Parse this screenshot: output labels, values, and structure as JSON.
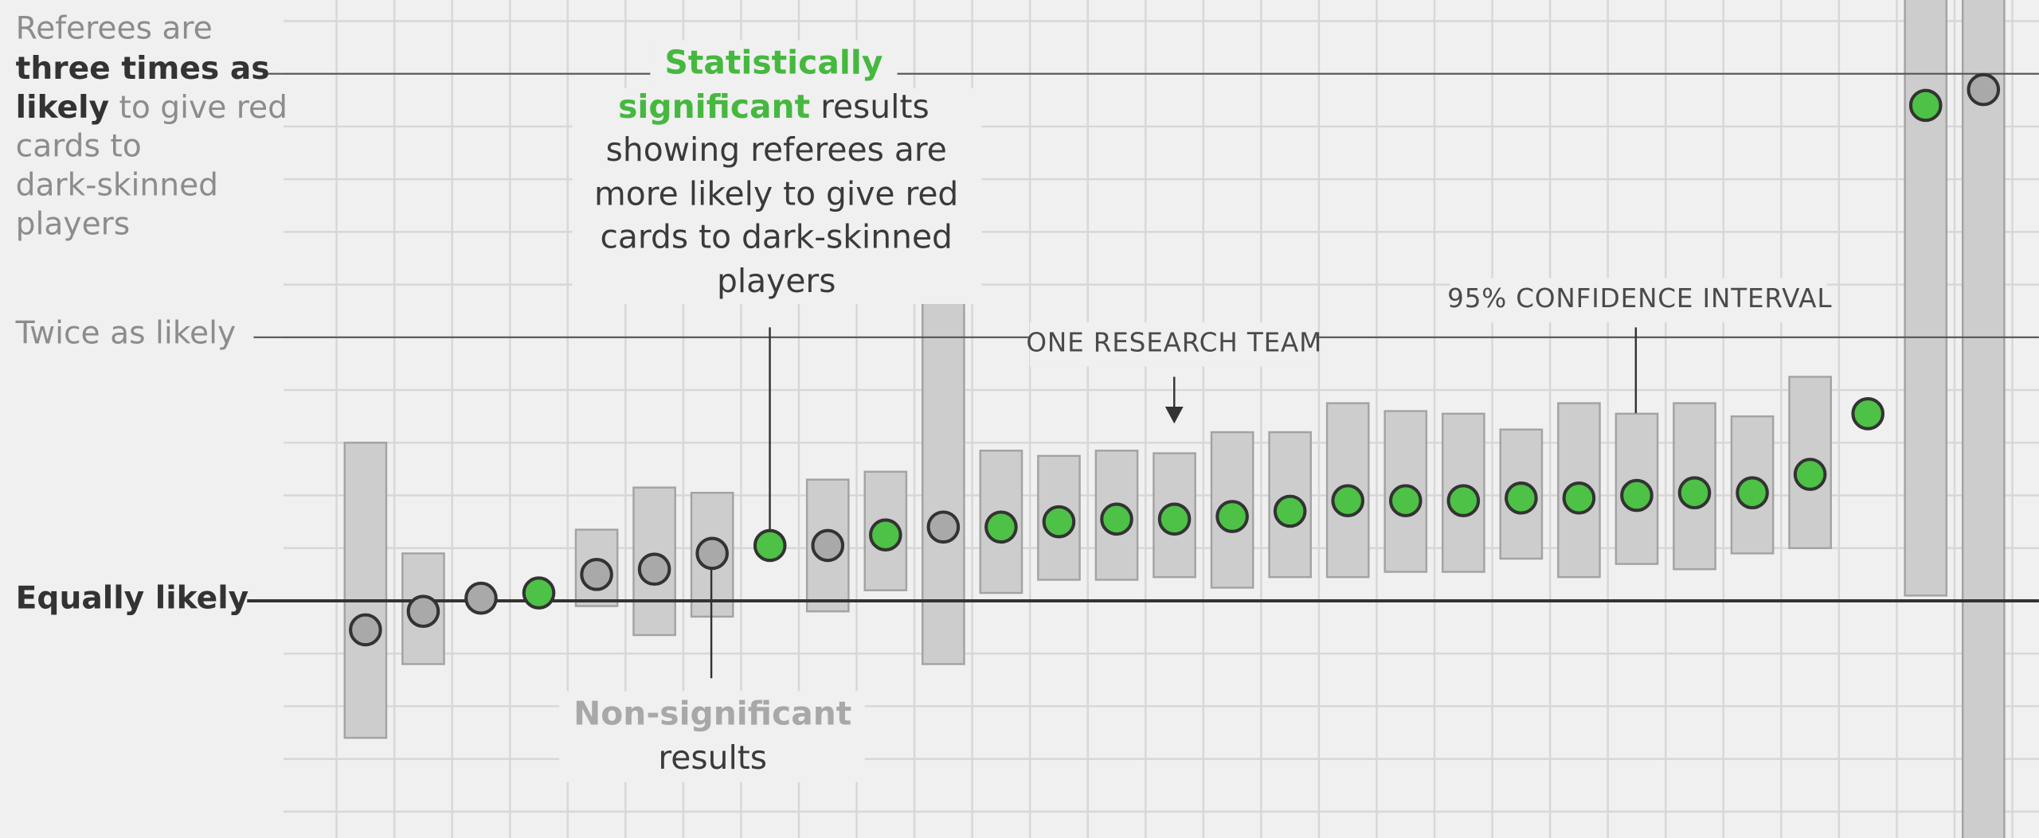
{
  "chart_data": {
    "type": "dot_interval",
    "categories": [
      null,
      null,
      null,
      null,
      null,
      null,
      null,
      null,
      null,
      null,
      null,
      null,
      null,
      null,
      null,
      null,
      null,
      null,
      null,
      null,
      null,
      null,
      null,
      null,
      null,
      null,
      null,
      null,
      null
    ],
    "values": [
      0.89,
      0.96,
      1.01,
      1.03,
      1.1,
      1.12,
      1.18,
      1.21,
      1.21,
      1.25,
      1.28,
      1.28,
      1.3,
      1.31,
      1.31,
      1.32,
      1.34,
      1.38,
      1.38,
      1.38,
      1.39,
      1.39,
      1.4,
      1.41,
      1.41,
      1.48,
      1.71,
      2.88,
      2.94
    ],
    "lows": [
      0.48,
      0.76,
      null,
      null,
      0.98,
      0.87,
      0.94,
      null,
      0.96,
      1.04,
      0.76,
      1.03,
      1.08,
      1.08,
      1.09,
      1.05,
      1.09,
      1.09,
      1.11,
      1.11,
      1.16,
      1.09,
      1.14,
      1.12,
      1.18,
      1.2,
      null,
      1.02,
      0.08
    ],
    "highs": [
      1.6,
      1.18,
      null,
      null,
      1.27,
      1.43,
      1.41,
      null,
      1.46,
      1.49,
      2.13,
      1.57,
      1.55,
      1.57,
      1.56,
      1.64,
      1.64,
      1.75,
      1.72,
      1.71,
      1.65,
      1.75,
      1.71,
      1.75,
      1.7,
      1.85,
      null,
      3.5,
      3.6
    ],
    "colors": [
      "#a9a9a9",
      "#a9a9a9",
      "#a9a9a9",
      "#4dc246",
      "#a9a9a9",
      "#a9a9a9",
      "#a9a9a9",
      "#4dc246",
      "#a9a9a9",
      "#4dc246",
      "#a9a9a9",
      "#4dc246",
      "#4dc246",
      "#4dc246",
      "#4dc246",
      "#4dc246",
      "#4dc246",
      "#4dc246",
      "#4dc246",
      "#4dc246",
      "#4dc246",
      "#4dc246",
      "#4dc246",
      "#4dc246",
      "#4dc246",
      "#4dc246",
      "#4dc246",
      "#4dc246",
      "#a9a9a9"
    ],
    "interval_color": "#cdcdcd",
    "ylim": [
      0.1,
      3.28
    ],
    "yticks": [
      {
        "value": 1,
        "label": "Equally likely"
      },
      {
        "value": 2,
        "label": "Twice as likely"
      },
      {
        "value": 3,
        "label": [
          "Referees are",
          "three times as",
          "likely",
          " to give red",
          "cards to",
          "dark-skinned",
          "players"
        ]
      }
    ],
    "grid": true,
    "grid_yticks": [
      0.2,
      0.4,
      0.6,
      0.8,
      1.0,
      1.2,
      1.4,
      1.6,
      1.8,
      2.0,
      2.2,
      2.4,
      2.6,
      2.8,
      3.0,
      3.2
    ],
    "annotations": [
      {
        "text": [
          "Statistically",
          "significant",
          " results",
          "showing referees are",
          "more likely to give red",
          "cards to dark-skinned",
          "players"
        ]
      },
      {
        "text": [
          "Non-significant",
          "results"
        ]
      },
      {
        "text": "ONE RESEARCH TEAM"
      },
      {
        "text": "95% CONFIDENCE INTERVAL"
      }
    ]
  }
}
